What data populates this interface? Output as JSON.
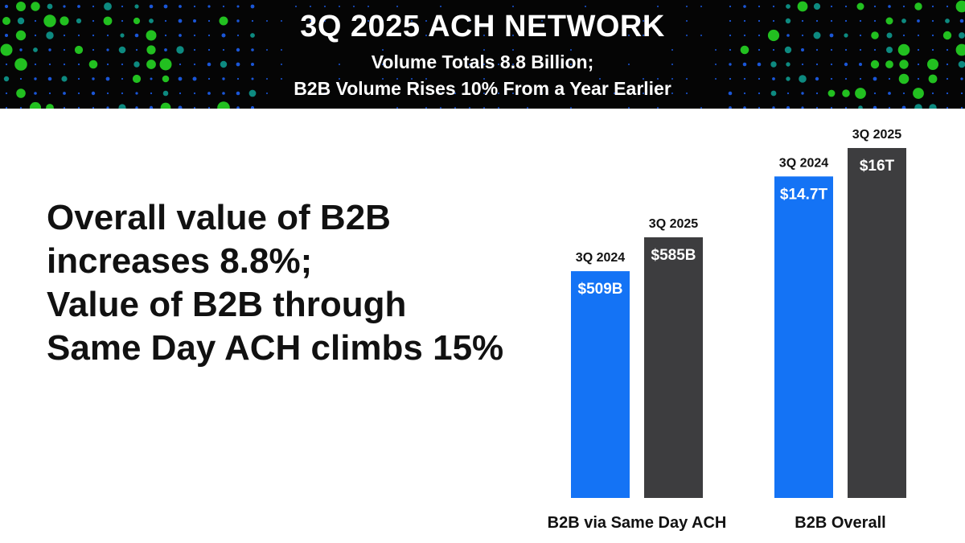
{
  "header": {
    "title": "3Q 2025 ACH NETWORK",
    "subtitle_line1": "Volume Totals 8.8 Billion;",
    "subtitle_line2": "B2B Volume Rises 10% From a Year Earlier"
  },
  "headline": {
    "line1": "Overall value of B2B",
    "line2": "increases 8.8%;",
    "line3": "Value of B2B through",
    "line4": "Same Day ACH climbs 15%"
  },
  "colors": {
    "banner_bg": "#050505",
    "series_2024": "#1473f5",
    "series_2025": "#3d3d3f",
    "dot_green": "#22c020",
    "dot_teal": "#0d8a80",
    "dot_blue": "#1a56d8"
  },
  "chart_data": [
    {
      "type": "bar",
      "category": "B2B via Same Day ACH",
      "unit": "billions USD",
      "series": [
        {
          "name": "3Q 2024",
          "value": 509,
          "label": "$509B"
        },
        {
          "name": "3Q 2025",
          "value": 585,
          "label": "$585B"
        }
      ]
    },
    {
      "type": "bar",
      "category": "B2B Overall",
      "unit": "trillions USD",
      "series": [
        {
          "name": "3Q 2024",
          "value": 14.7,
          "label": "$14.7T"
        },
        {
          "name": "3Q 2025",
          "value": 16,
          "label": "$16T"
        }
      ]
    }
  ]
}
